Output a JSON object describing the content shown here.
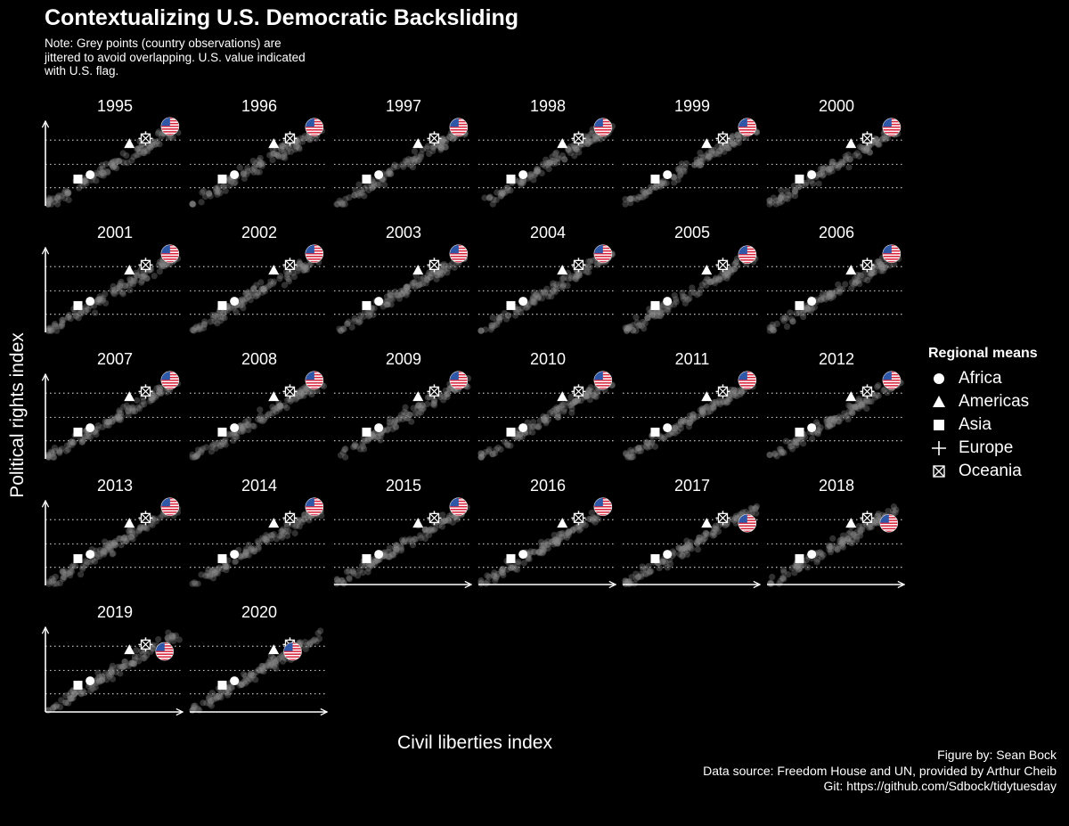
{
  "title": "Contextualizing U.S. Democratic Backsliding",
  "note": "Note: Grey points (country observations) are jittered to avoid overlapping. U.S. value indicated with U.S. flag.",
  "credits": [
    "Figure by: Sean Bock",
    "Data source: Freedom House and UN, provided by Arthur Cheib",
    "Git: https://github.com/Sdbock/tidytuesday"
  ],
  "colors": {
    "background": "#000000",
    "text": "#ffffff",
    "country_points": "#8a8a8a",
    "flag_red": "#d8213a",
    "flag_blue": "#2f57a8"
  },
  "chart_data": {
    "type": "scatter",
    "facet_by": "year",
    "facets": [
      "1995",
      "1996",
      "1997",
      "1998",
      "1999",
      "2000",
      "2001",
      "2002",
      "2003",
      "2004",
      "2005",
      "2006",
      "2007",
      "2008",
      "2009",
      "2010",
      "2011",
      "2012",
      "2013",
      "2014",
      "2015",
      "2016",
      "2017",
      "2018",
      "2019",
      "2020"
    ],
    "xlabel": "Civil liberties index",
    "ylabel": "Political rights index",
    "axis_style": "arrows, no tick labels",
    "gridlines": "dotted horizontal, 3 levels",
    "country_observations": "grey jittered points rising from lower-left to upper-right",
    "legend": {
      "title": "Regional means",
      "position": "right",
      "entries": [
        {
          "name": "Africa",
          "shape": "circle"
        },
        {
          "name": "Americas",
          "shape": "triangle"
        },
        {
          "name": "Asia",
          "shape": "square"
        },
        {
          "name": "Europe",
          "shape": "plus"
        },
        {
          "name": "Oceania",
          "shape": "boxed-x"
        }
      ]
    },
    "regional_means_approx": {
      "Africa": [
        0.3,
        0.36
      ],
      "Americas": [
        0.62,
        0.72
      ],
      "Asia": [
        0.24,
        0.31
      ],
      "Europe": [
        0.74,
        0.78
      ],
      "Oceania": [
        0.74,
        0.78
      ]
    },
    "us_flag_approx": [
      {
        "year": "1995",
        "x": 0.92,
        "y": 0.92
      },
      {
        "year": "2005",
        "x": 0.92,
        "y": 0.9
      },
      {
        "year": "2017",
        "x": 0.92,
        "y": 0.72
      },
      {
        "year": "2018",
        "x": 0.9,
        "y": 0.72
      },
      {
        "year": "2019",
        "x": 0.88,
        "y": 0.7
      },
      {
        "year": "2020",
        "x": 0.76,
        "y": 0.7
      }
    ]
  }
}
